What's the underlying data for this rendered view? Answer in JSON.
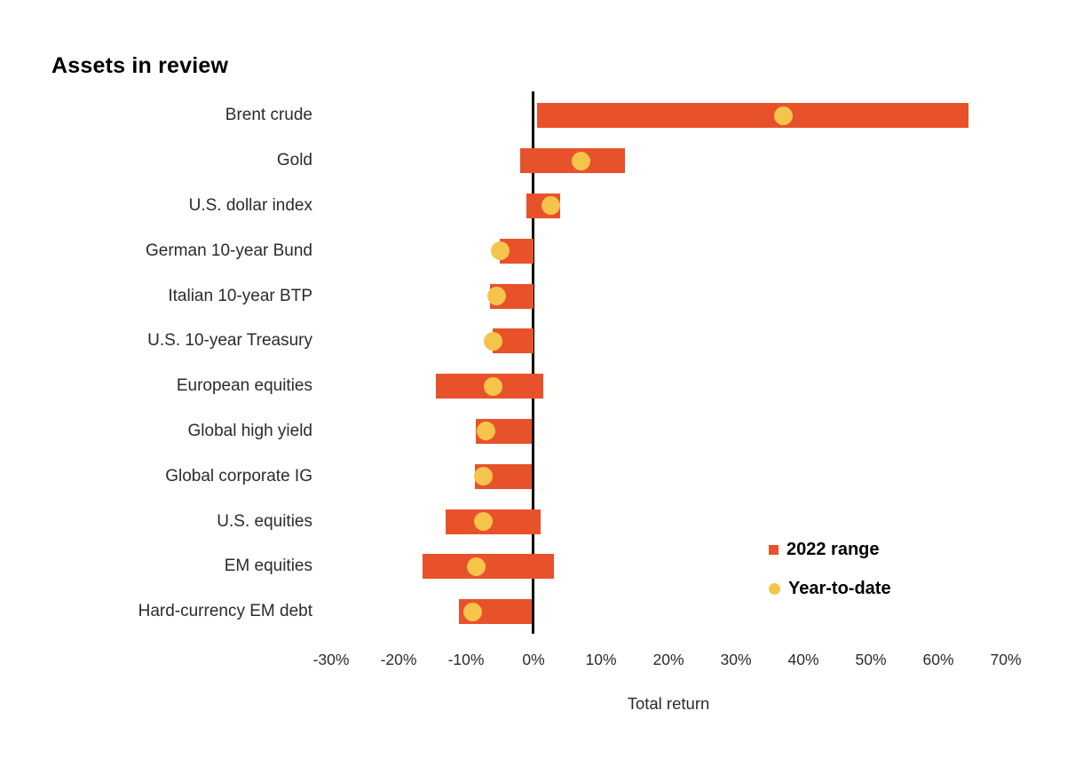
{
  "title": "Assets in review",
  "legend": {
    "items": [
      {
        "label": "2022 range",
        "marker": "square"
      },
      {
        "label": "Year-to-date",
        "marker": "circle"
      }
    ]
  },
  "colors": {
    "bar": "#E8522B",
    "dot": "#F5C54B",
    "axis_line": "#000000",
    "text": "#2B2B2B"
  },
  "chart_data": {
    "type": "bar",
    "variant": "horizontal-range-bars-with-ytd-dots",
    "title": "Assets in review",
    "xlabel": "Total return",
    "unit": "%",
    "xlim": [
      -30,
      70
    ],
    "grid": false,
    "legend_position": "inside-right",
    "x_ticks": [
      {
        "value": -30,
        "label": "-30%"
      },
      {
        "value": -20,
        "label": "-20%"
      },
      {
        "value": -10,
        "label": "-10%"
      },
      {
        "value": 0,
        "label": "0%"
      },
      {
        "value": 10,
        "label": "10%"
      },
      {
        "value": 20,
        "label": "20%"
      },
      {
        "value": 30,
        "label": "30%"
      },
      {
        "value": 40,
        "label": "40%"
      },
      {
        "value": 50,
        "label": "50%"
      },
      {
        "value": 60,
        "label": "60%"
      },
      {
        "value": 70,
        "label": "70%"
      }
    ],
    "categories": [
      "Brent crude",
      "Gold",
      "U.S. dollar index",
      "German 10-year Bund",
      "Italian 10-year BTP",
      "U.S. 10-year Treasury",
      "European equities",
      "Global high yield",
      "Global corporate IG",
      "U.S. equities",
      "EM equities",
      "Hard-currency EM debt"
    ],
    "series": [
      {
        "name": "2022 range",
        "type": "range",
        "ranges": [
          [
            0.5,
            64.5
          ],
          [
            -2,
            13.5
          ],
          [
            -1,
            4
          ],
          [
            -5,
            0
          ],
          [
            -6.5,
            0
          ],
          [
            -6,
            0
          ],
          [
            -14.5,
            1.5
          ],
          [
            -8.5,
            -0.3
          ],
          [
            -8.7,
            -0.3
          ],
          [
            -13,
            1
          ],
          [
            -16.5,
            3
          ],
          [
            -11,
            -0.3
          ]
        ]
      },
      {
        "name": "Year-to-date",
        "type": "point",
        "values": [
          37,
          7,
          2.5,
          -5,
          -5.5,
          -6,
          -6,
          -7,
          -7.5,
          -7.5,
          -8.5,
          -9
        ]
      }
    ]
  }
}
